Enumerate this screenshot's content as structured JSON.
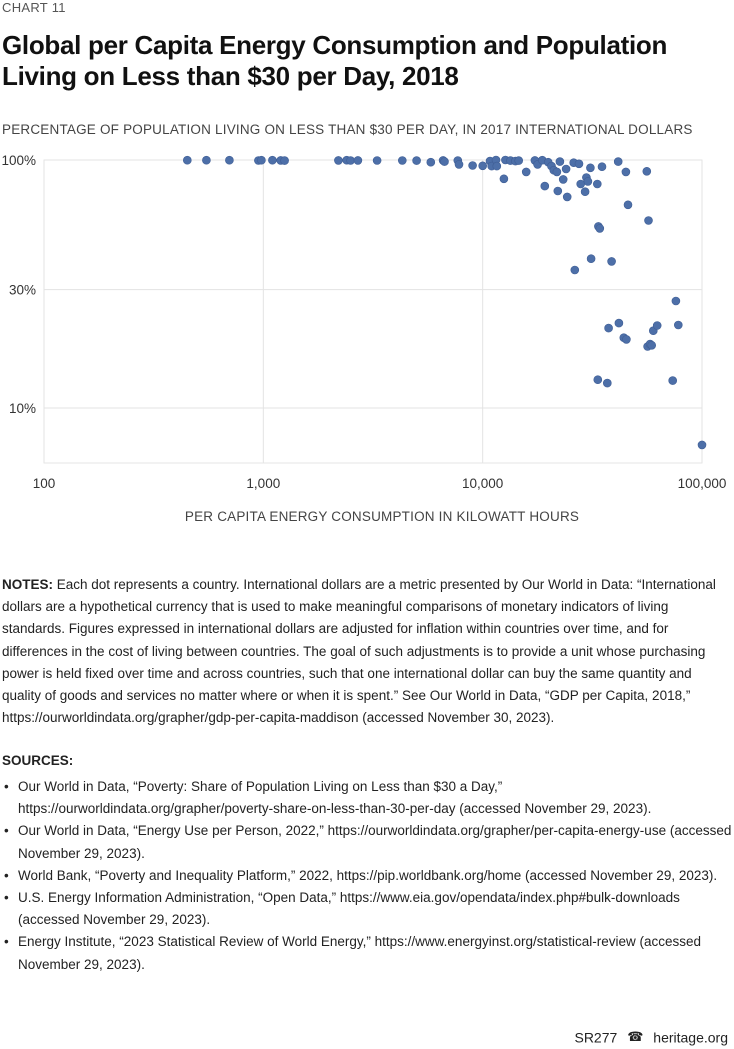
{
  "header": {
    "chart_number": "CHART 11",
    "title": "Global per Capita Energy Consumption and Population Living on Less than $30 per Day, 2018"
  },
  "chart_data": {
    "type": "scatter",
    "title": "Global per Capita Energy Consumption and Population Living on Less than $30 per Day, 2018",
    "ylabel": "PERCENTAGE OF POPULATION LIVING ON LESS THAN $30 PER DAY, IN 2017 INTERNATIONAL DOLLARS",
    "xlabel": "PER CAPITA ENERGY CONSUMPTION IN KILOWATT HOURS",
    "x_scale": "log",
    "y_scale": "log",
    "xlim": [
      100,
      100000
    ],
    "ylim": [
      6,
      100
    ],
    "x_ticks": [
      {
        "value": 100,
        "label": "100"
      },
      {
        "value": 1000,
        "label": "1,000"
      },
      {
        "value": 10000,
        "label": "10,000"
      },
      {
        "value": 100000,
        "label": "100,000"
      }
    ],
    "y_ticks": [
      {
        "value": 100,
        "label": "100%"
      },
      {
        "value": 30,
        "label": "30%"
      },
      {
        "value": 10,
        "label": "10%"
      }
    ],
    "grid": true,
    "color": "#4d6fa8",
    "points": [
      {
        "x": 450,
        "y": 99.8
      },
      {
        "x": 550,
        "y": 99.8
      },
      {
        "x": 700,
        "y": 99.8
      },
      {
        "x": 950,
        "y": 99.5
      },
      {
        "x": 980,
        "y": 99.8
      },
      {
        "x": 1100,
        "y": 99.8
      },
      {
        "x": 1200,
        "y": 99.6
      },
      {
        "x": 1250,
        "y": 99.4
      },
      {
        "x": 2200,
        "y": 99.6
      },
      {
        "x": 2400,
        "y": 99.8
      },
      {
        "x": 2500,
        "y": 99.5
      },
      {
        "x": 2700,
        "y": 99.6
      },
      {
        "x": 3300,
        "y": 99.5
      },
      {
        "x": 4300,
        "y": 99.5
      },
      {
        "x": 5000,
        "y": 99.4
      },
      {
        "x": 5800,
        "y": 98.0
      },
      {
        "x": 6600,
        "y": 99.6
      },
      {
        "x": 6700,
        "y": 98.5
      },
      {
        "x": 7700,
        "y": 99.5
      },
      {
        "x": 7800,
        "y": 96.0
      },
      {
        "x": 9000,
        "y": 95.0
      },
      {
        "x": 10000,
        "y": 94.8
      },
      {
        "x": 10800,
        "y": 99.0
      },
      {
        "x": 11000,
        "y": 94.5
      },
      {
        "x": 11500,
        "y": 100
      },
      {
        "x": 11600,
        "y": 94.5
      },
      {
        "x": 12500,
        "y": 84.0
      },
      {
        "x": 12700,
        "y": 100
      },
      {
        "x": 13400,
        "y": 99.4
      },
      {
        "x": 14100,
        "y": 99.0
      },
      {
        "x": 14600,
        "y": 99.4
      },
      {
        "x": 15800,
        "y": 89.5
      },
      {
        "x": 17300,
        "y": 99.6
      },
      {
        "x": 17800,
        "y": 96.0
      },
      {
        "x": 18700,
        "y": 99.8
      },
      {
        "x": 19200,
        "y": 78.5
      },
      {
        "x": 19900,
        "y": 98.0
      },
      {
        "x": 20600,
        "y": 94.5
      },
      {
        "x": 21100,
        "y": 91.0
      },
      {
        "x": 21800,
        "y": 89.5
      },
      {
        "x": 22000,
        "y": 75.0
      },
      {
        "x": 22500,
        "y": 98.5
      },
      {
        "x": 23300,
        "y": 83.5
      },
      {
        "x": 24000,
        "y": 92.0
      },
      {
        "x": 24300,
        "y": 71.0
      },
      {
        "x": 26000,
        "y": 97.5
      },
      {
        "x": 26300,
        "y": 36.0
      },
      {
        "x": 27500,
        "y": 96.5
      },
      {
        "x": 28000,
        "y": 80.0
      },
      {
        "x": 29300,
        "y": 74.5
      },
      {
        "x": 29700,
        "y": 85.0
      },
      {
        "x": 30200,
        "y": 82.0
      },
      {
        "x": 31000,
        "y": 93.0
      },
      {
        "x": 31200,
        "y": 40.0
      },
      {
        "x": 33300,
        "y": 80.0
      },
      {
        "x": 33500,
        "y": 13.0
      },
      {
        "x": 33700,
        "y": 54.0
      },
      {
        "x": 34200,
        "y": 53.0
      },
      {
        "x": 35000,
        "y": 94.0
      },
      {
        "x": 37000,
        "y": 12.6
      },
      {
        "x": 37500,
        "y": 21.0
      },
      {
        "x": 38700,
        "y": 39.0
      },
      {
        "x": 41500,
        "y": 98.5
      },
      {
        "x": 41800,
        "y": 22.0
      },
      {
        "x": 44000,
        "y": 19.2
      },
      {
        "x": 45000,
        "y": 89.5
      },
      {
        "x": 45200,
        "y": 18.9
      },
      {
        "x": 46000,
        "y": 66.0
      },
      {
        "x": 56000,
        "y": 90.0
      },
      {
        "x": 56500,
        "y": 17.7
      },
      {
        "x": 57000,
        "y": 57.0
      },
      {
        "x": 58000,
        "y": 18.1
      },
      {
        "x": 59000,
        "y": 17.9
      },
      {
        "x": 60000,
        "y": 20.5
      },
      {
        "x": 62500,
        "y": 21.5
      },
      {
        "x": 73500,
        "y": 12.9
      },
      {
        "x": 76000,
        "y": 27.0
      },
      {
        "x": 78000,
        "y": 21.6
      },
      {
        "x": 100000,
        "y": 7.1
      }
    ]
  },
  "notes": {
    "label": "NOTES:",
    "text": " Each dot represents a country. International dollars are a metric presented by Our World in Data: “International dollars are a hypothetical currency that is used to make meaningful comparisons of monetary indicators of living standards. Figures expressed in international dollars are adjusted for inflation within countries over time, and for differences in the cost of living between countries. The goal of such adjustments is to provide a unit whose purchasing power is held fixed over time and across countries, such that one international dollar can buy the same quantity and quality of goods and services no matter where or when it is spent.” See Our World in Data, “GDP per Capita, 2018,” https://ourworldindata.org/grapher/gdp-per-capita-maddison (accessed November 30, 2023)."
  },
  "sources": {
    "label": "SOURCES:",
    "items": [
      "Our World in Data, “Poverty: Share of Population Living on Less than $30 a Day,” https://ourworldindata.org/grapher/poverty-share-on-less-than-30-per-day (accessed November 29, 2023).",
      "Our World in Data, “Energy Use per Person, 2022,” https://ourworldindata.org/grapher/per-capita-energy-use (accessed November 29, 2023).",
      "World Bank, “Poverty and Inequality Platform,” 2022, https://pip.worldbank.org/home (accessed November 29, 2023).",
      "U.S. Energy Information Administration, “Open Data,” https://www.eia.gov/opendata/index.php#bulk-downloads (accessed November 29, 2023).",
      "Energy Institute, “2023 Statistical Review of World Energy,” https://www.energyinst.org/statistical-review (accessed November 29, 2023)."
    ]
  },
  "footer": {
    "report_id": "SR277",
    "icon": "liberty-bell-icon",
    "site": "heritage.org"
  }
}
